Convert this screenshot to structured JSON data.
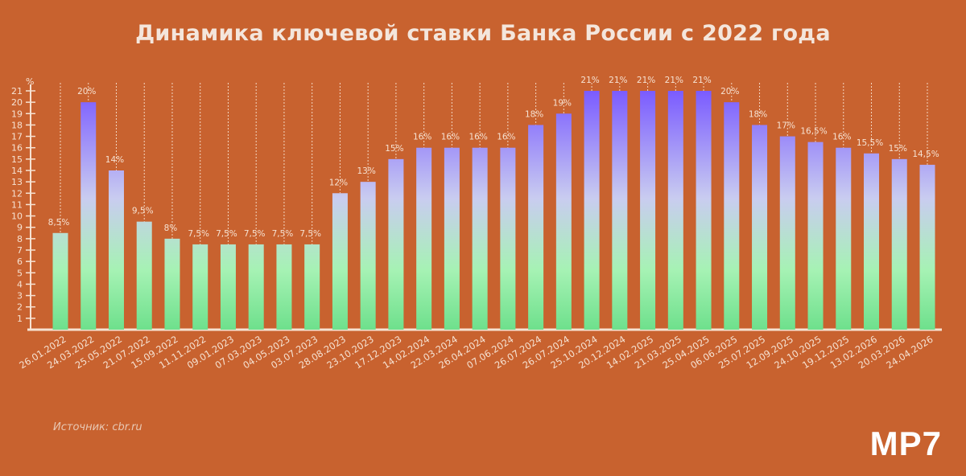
{
  "chart_data": {
    "type": "bar",
    "title": "Динамика ключевой ставки Банка России с 2022 года",
    "ylabel": "%",
    "ylim": [
      0,
      21
    ],
    "yticks": [
      1,
      2,
      3,
      4,
      5,
      6,
      7,
      8,
      9,
      10,
      11,
      12,
      13,
      14,
      15,
      16,
      17,
      18,
      19,
      20,
      21
    ],
    "grid": false,
    "categories": [
      "26.01.2022",
      "24.03.2022",
      "25.05.2022",
      "21.07.2022",
      "15.09.2022",
      "11.11.2022",
      "09.01.2023",
      "07.03.2023",
      "04.05.2023",
      "03.07.2023",
      "28.08.2023",
      "23.10.2023",
      "17.12.2023",
      "14.02.2024",
      "22.03.2024",
      "26.04.2024",
      "07.06.2024",
      "26.07.2024",
      "26.07.2024",
      "25.10.2024",
      "20.12.2024",
      "14.02.2025",
      "21.03.2025",
      "25.04.2025",
      "06.06.2025",
      "25.07.2025",
      "12.09.2025",
      "24.10.2025",
      "19.12.2025",
      "13.02.2026",
      "20.03.2026",
      "24.04.2026"
    ],
    "values": [
      8.5,
      20,
      14,
      9.5,
      8,
      7.5,
      7.5,
      7.5,
      7.5,
      7.5,
      12,
      13,
      15,
      16,
      16,
      16,
      16,
      18,
      19,
      21,
      21,
      21,
      21,
      21,
      20,
      18,
      17,
      16.5,
      16,
      15.5,
      15,
      14.5
    ],
    "data_labels": [
      "8,5%",
      "20%",
      "14%",
      "9,5%",
      "8%",
      "7,5%",
      "7,5%",
      "7,5%",
      "7,5%",
      "7,5%",
      "12%",
      "13%",
      "15%",
      "16%",
      "16%",
      "16%",
      "16%",
      "18%",
      "19%",
      "21%",
      "21%",
      "21%",
      "21%",
      "21%",
      "20%",
      "18%",
      "17%",
      "16,5%",
      "16%",
      "15,5%",
      "15%",
      "14,5%"
    ],
    "colors": {
      "background": "#C8622F",
      "bar_top": "#7A5BFF",
      "bar_mid": "#C9CCF0",
      "bar_bottom": "#6EE08C",
      "axis": "#F6E2D2"
    }
  },
  "source": "Источник: cbr.ru",
  "logo": "MP7"
}
